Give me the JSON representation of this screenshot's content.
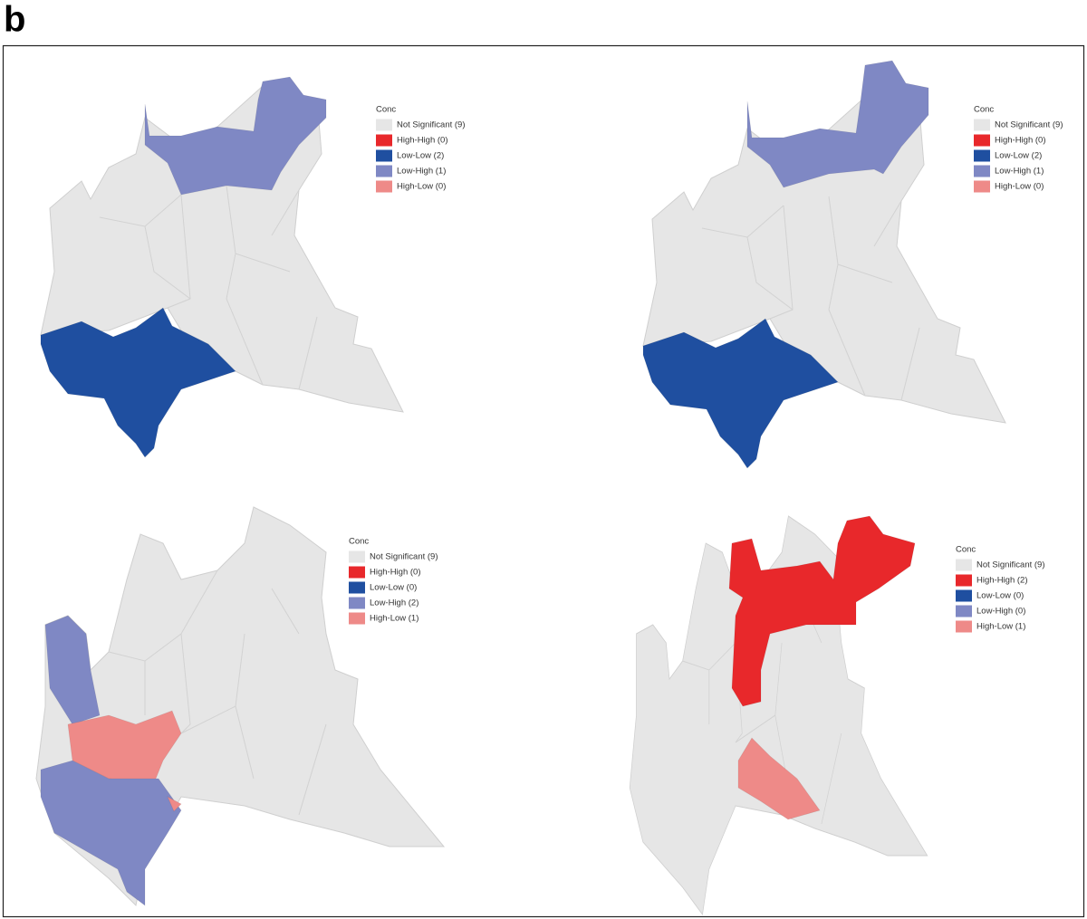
{
  "panel_label": "b",
  "panels": [
    {
      "legend": {
        "title": "Conc",
        "items": [
          {
            "label": "Not Significant (9)",
            "color": "#e6e6e6"
          },
          {
            "label": "High-High (0)",
            "color": "#e8282b"
          },
          {
            "label": "Low-Low (2)",
            "color": "#1f4fa0"
          },
          {
            "label": "Low-High (1)",
            "color": "#7f88c4"
          },
          {
            "label": "High-Low (0)",
            "color": "#ee8a88"
          }
        ]
      }
    },
    {
      "legend": {
        "title": "Conc",
        "items": [
          {
            "label": "Not Significant (9)",
            "color": "#e6e6e6"
          },
          {
            "label": "High-High (0)",
            "color": "#e8282b"
          },
          {
            "label": "Low-Low (2)",
            "color": "#1f4fa0"
          },
          {
            "label": "Low-High (1)",
            "color": "#7f88c4"
          },
          {
            "label": "High-Low (0)",
            "color": "#ee8a88"
          }
        ]
      }
    },
    {
      "legend": {
        "title": "Conc",
        "items": [
          {
            "label": "Not Significant (9)",
            "color": "#e6e6e6"
          },
          {
            "label": "High-High (0)",
            "color": "#e8282b"
          },
          {
            "label": "Low-Low (0)",
            "color": "#1f4fa0"
          },
          {
            "label": "Low-High (2)",
            "color": "#7f88c4"
          },
          {
            "label": "High-Low (1)",
            "color": "#ee8a88"
          }
        ]
      }
    },
    {
      "legend": {
        "title": "Conc",
        "items": [
          {
            "label": "Not Significant (9)",
            "color": "#e6e6e6"
          },
          {
            "label": "High-High (2)",
            "color": "#e8282b"
          },
          {
            "label": "Low-Low (0)",
            "color": "#1f4fa0"
          },
          {
            "label": "Low-High (0)",
            "color": "#7f88c4"
          },
          {
            "label": "High-Low (1)",
            "color": "#ee8a88"
          }
        ]
      }
    }
  ]
}
